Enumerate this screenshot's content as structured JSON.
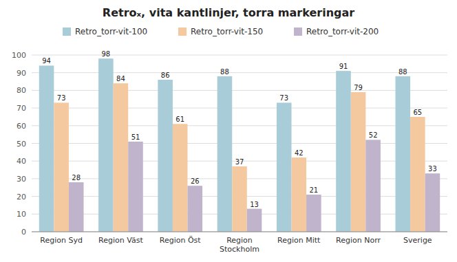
{
  "chart_data": {
    "type": "bar",
    "title": "Retroₓ, vita kantlinjer, torra markeringar",
    "categories": [
      "Region Syd",
      "Region Väst",
      "Region Öst",
      "Region\nStockholm",
      "Region Mitt",
      "Region Norr",
      "Sverige"
    ],
    "series": [
      {
        "name": "Retro_torr-vit-100",
        "color": "#a8cdd8",
        "values": [
          94,
          98,
          86,
          88,
          73,
          91,
          88
        ]
      },
      {
        "name": "Retro_torr-vit-150",
        "color": "#f5c9a0",
        "values": [
          73,
          84,
          61,
          37,
          42,
          79,
          65
        ]
      },
      {
        "name": "Retro_torr-vit-200",
        "color": "#c0b4cc",
        "values": [
          28,
          51,
          26,
          13,
          21,
          52,
          33
        ]
      }
    ],
    "ylim": [
      0,
      100
    ],
    "yticks": [
      0,
      10,
      20,
      30,
      40,
      50,
      60,
      70,
      80,
      90,
      100
    ],
    "grid": true,
    "legend": "top",
    "data_labels": true
  }
}
